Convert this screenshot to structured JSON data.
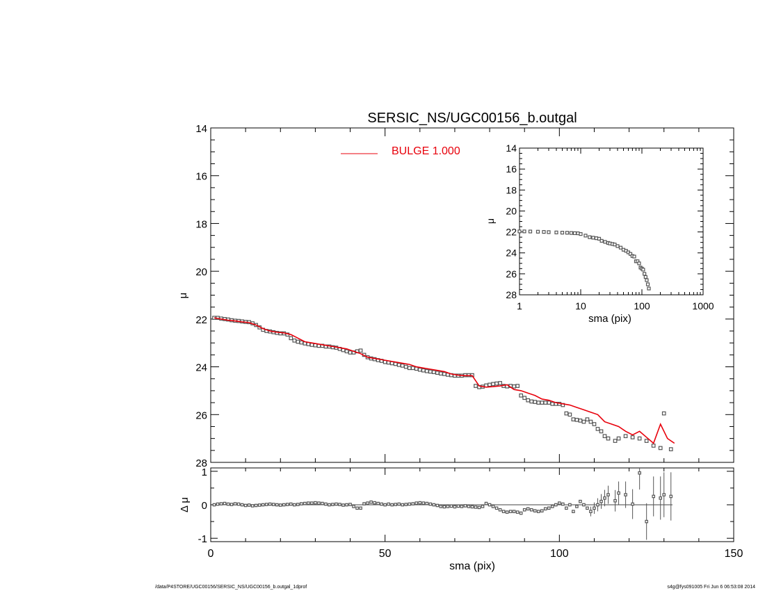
{
  "title": "SERSIC_NS/UGC00156_b.outgal",
  "footer": {
    "left": "/data/P4STORE/UGC00156/SERSIC_NS/UGC00156_b.outgal_1dprof",
    "right": "s4g@fys091005  Fri Jun  6 06:53:08 2014"
  },
  "colors": {
    "model": "#e8000b",
    "data": "#555555",
    "axes": "#000000"
  },
  "chart_data": [
    {
      "panel": "main",
      "type": "scatter",
      "title": "SERSIC_NS/UGC00156_b.outgal",
      "ylabel": "μ",
      "xlim": [
        0,
        150
      ],
      "ylim": [
        28,
        14
      ],
      "y_reversed": true,
      "yticks": [
        "14",
        "16",
        "18",
        "20",
        "22",
        "24",
        "26",
        "28"
      ],
      "legend": {
        "label": "BULGE  1.000",
        "placement": "top-center"
      },
      "series": [
        {
          "name": "data",
          "x": [
            1,
            2,
            3,
            4,
            5,
            6,
            7,
            8,
            9,
            10,
            11,
            12,
            13,
            14,
            15,
            16,
            17,
            18,
            19,
            20,
            21,
            22,
            23,
            24,
            25,
            26,
            27,
            28,
            29,
            30,
            31,
            32,
            33,
            34,
            35,
            36,
            37,
            38,
            39,
            40,
            41,
            42,
            43,
            44,
            45,
            46,
            47,
            48,
            49,
            50,
            51,
            52,
            53,
            54,
            55,
            56,
            57,
            58,
            59,
            60,
            61,
            62,
            63,
            64,
            65,
            66,
            67,
            68,
            69,
            70,
            71,
            72,
            73,
            74,
            75,
            76,
            77,
            78,
            79,
            80,
            81,
            82,
            83,
            84,
            85,
            86,
            87,
            88,
            89,
            90,
            91,
            92,
            93,
            94,
            95,
            96,
            97,
            98,
            99,
            100,
            101,
            102,
            103,
            104,
            105,
            106,
            107,
            108,
            109,
            110,
            111,
            112,
            113,
            114,
            116,
            117,
            119,
            121,
            123,
            125,
            127,
            129,
            130,
            132
          ],
          "values": [
            21.95,
            21.95,
            21.98,
            22.0,
            22.02,
            22.05,
            22.07,
            22.08,
            22.1,
            22.12,
            22.13,
            22.18,
            22.25,
            22.35,
            22.45,
            22.5,
            22.52,
            22.55,
            22.58,
            22.6,
            22.6,
            22.65,
            22.8,
            22.9,
            22.95,
            22.98,
            23.02,
            23.05,
            23.08,
            23.1,
            23.12,
            23.12,
            23.15,
            23.15,
            23.18,
            23.2,
            23.25,
            23.3,
            23.35,
            23.4,
            23.4,
            23.35,
            23.32,
            23.5,
            23.6,
            23.65,
            23.68,
            23.72,
            23.75,
            23.8,
            23.82,
            23.85,
            23.88,
            23.92,
            23.95,
            24.0,
            24.05,
            24.05,
            24.08,
            24.12,
            24.15,
            24.18,
            24.2,
            24.22,
            24.25,
            24.28,
            24.3,
            24.33,
            24.35,
            24.37,
            24.37,
            24.37,
            24.35,
            24.35,
            24.35,
            24.8,
            24.85,
            24.83,
            24.78,
            24.75,
            24.72,
            24.7,
            24.68,
            24.8,
            24.82,
            24.8,
            24.82,
            24.8,
            25.2,
            25.3,
            25.4,
            25.45,
            25.47,
            25.5,
            25.5,
            25.5,
            25.5,
            25.55,
            25.55,
            25.55,
            25.6,
            25.95,
            26.0,
            26.2,
            26.22,
            26.25,
            26.3,
            26.2,
            26.3,
            26.4,
            26.6,
            26.7,
            26.9,
            27.0,
            27.1,
            27.0,
            26.9,
            26.95,
            27.0,
            27.1,
            27.3,
            27.4,
            25.95,
            27.45
          ]
        },
        {
          "name": "model",
          "x": [
            1,
            3,
            5,
            7,
            9,
            11,
            13,
            15,
            17,
            19,
            21,
            23,
            25,
            27,
            29,
            31,
            33,
            35,
            37,
            39,
            41,
            43,
            45,
            47,
            49,
            51,
            53,
            55,
            57,
            59,
            61,
            63,
            65,
            67,
            69,
            71,
            73,
            75,
            77,
            79,
            81,
            83,
            85,
            87,
            89,
            91,
            93,
            95,
            97,
            99,
            101,
            103,
            105,
            107,
            109,
            111,
            113,
            115,
            117,
            119,
            121,
            123,
            125,
            127,
            129,
            131,
            133
          ],
          "values": [
            21.95,
            22.0,
            22.05,
            22.08,
            22.12,
            22.15,
            22.25,
            22.4,
            22.5,
            22.55,
            22.58,
            22.65,
            22.8,
            22.95,
            23.0,
            23.05,
            23.1,
            23.15,
            23.2,
            23.25,
            23.35,
            23.45,
            23.6,
            23.65,
            23.7,
            23.75,
            23.8,
            23.85,
            23.9,
            24.0,
            24.05,
            24.1,
            24.15,
            24.2,
            24.3,
            24.35,
            24.37,
            24.37,
            24.8,
            24.85,
            24.83,
            24.8,
            24.75,
            24.95,
            25.0,
            25.1,
            25.2,
            25.35,
            25.4,
            25.5,
            25.55,
            25.6,
            25.7,
            25.8,
            25.9,
            26.0,
            26.3,
            26.4,
            26.5,
            26.7,
            26.85,
            26.7,
            26.95,
            27.2,
            26.4,
            27.0,
            27.2
          ]
        }
      ]
    },
    {
      "panel": "residual",
      "type": "scatter",
      "xlabel": "sma (pix)",
      "ylabel": "Δ μ",
      "xlim": [
        0,
        150
      ],
      "ylim": [
        -1.1,
        1.1
      ],
      "xticks": [
        "0",
        "50",
        "100",
        "150"
      ],
      "yticks": [
        "1",
        "0",
        "-1"
      ],
      "series": [
        {
          "name": "residual",
          "x": [
            1,
            2,
            3,
            4,
            5,
            6,
            7,
            8,
            9,
            10,
            11,
            12,
            13,
            14,
            15,
            16,
            17,
            18,
            19,
            20,
            21,
            22,
            23,
            24,
            25,
            26,
            27,
            28,
            29,
            30,
            31,
            32,
            33,
            34,
            35,
            36,
            37,
            38,
            39,
            40,
            41,
            42,
            43,
            44,
            45,
            46,
            47,
            48,
            49,
            50,
            51,
            52,
            53,
            54,
            55,
            56,
            57,
            58,
            59,
            60,
            61,
            62,
            63,
            64,
            65,
            66,
            67,
            68,
            69,
            70,
            71,
            72,
            73,
            74,
            75,
            76,
            77,
            78,
            79,
            80,
            81,
            82,
            83,
            84,
            85,
            86,
            87,
            88,
            89,
            90,
            91,
            92,
            93,
            94,
            95,
            96,
            97,
            98,
            99,
            100,
            101,
            102,
            103,
            104,
            105,
            106,
            107,
            108,
            109,
            110,
            111,
            112,
            113,
            114,
            116,
            117,
            119,
            121,
            123,
            125,
            127,
            129,
            130,
            132
          ],
          "values": [
            0.0,
            0.02,
            0.03,
            0.04,
            0.02,
            0.01,
            0.03,
            0.02,
            0.0,
            -0.02,
            -0.01,
            -0.03,
            -0.02,
            -0.01,
            0.0,
            0.01,
            0.02,
            0.01,
            0.0,
            -0.01,
            0.0,
            0.01,
            0.02,
            0.0,
            0.01,
            0.03,
            0.04,
            0.05,
            0.05,
            0.06,
            0.05,
            0.04,
            0.02,
            0.0,
            0.01,
            0.02,
            0.01,
            -0.01,
            0.0,
            0.01,
            -0.05,
            -0.1,
            -0.1,
            0.03,
            0.05,
            0.08,
            0.06,
            0.04,
            0.02,
            0.0,
            0.02,
            0.0,
            0.01,
            0.02,
            0.0,
            0.01,
            0.02,
            0.03,
            0.05,
            0.06,
            0.05,
            0.04,
            0.02,
            0.0,
            -0.02,
            -0.05,
            -0.06,
            -0.05,
            -0.04,
            -0.06,
            -0.04,
            -0.05,
            -0.03,
            -0.05,
            -0.06,
            -0.07,
            -0.08,
            -0.05,
            0.04,
            0.0,
            -0.05,
            -0.1,
            -0.15,
            -0.2,
            -0.22,
            -0.2,
            -0.2,
            -0.22,
            -0.25,
            -0.15,
            -0.12,
            -0.15,
            -0.18,
            -0.2,
            -0.18,
            -0.12,
            -0.1,
            -0.05,
            0.0,
            0.05,
            0.02,
            -0.1,
            0.0,
            -0.2,
            -0.05,
            0.1,
            0.0,
            -0.1,
            -0.2,
            -0.1,
            0.0,
            0.1,
            0.2,
            0.3,
            0.12,
            0.35,
            0.3,
            0.02,
            0.95,
            -0.5,
            0.25,
            0.2,
            0.3,
            0.25
          ]
        }
      ]
    },
    {
      "panel": "inset",
      "type": "scatter",
      "xlabel": "sma (pix)",
      "ylabel": "μ",
      "x_scale": "log",
      "xlim": [
        1,
        1000
      ],
      "ylim": [
        28,
        14
      ],
      "y_reversed": true,
      "xticks": [
        "1",
        "10",
        "100",
        "1000"
      ],
      "yticks": [
        "14",
        "16",
        "18",
        "20",
        "22",
        "24",
        "26",
        "28"
      ],
      "series": [
        {
          "name": "data",
          "x": [
            1,
            1.2,
            1.5,
            2,
            2.5,
            3,
            4,
            5,
            6,
            7,
            8,
            9,
            10,
            12,
            14,
            16,
            18,
            20,
            22,
            25,
            28,
            30,
            33,
            36,
            40,
            45,
            50,
            55,
            60,
            65,
            70,
            75,
            80,
            85,
            90,
            95,
            100,
            105,
            110,
            115,
            120,
            125,
            130
          ],
          "values": [
            21.95,
            21.95,
            21.96,
            21.98,
            22.0,
            22.02,
            22.05,
            22.07,
            22.08,
            22.1,
            22.12,
            22.13,
            22.2,
            22.35,
            22.5,
            22.55,
            22.6,
            22.65,
            22.85,
            22.95,
            23.05,
            23.1,
            23.15,
            23.2,
            23.35,
            23.5,
            23.7,
            23.8,
            23.95,
            24.1,
            24.3,
            24.35,
            24.8,
            24.8,
            25.0,
            25.4,
            25.5,
            25.6,
            26.0,
            26.3,
            26.6,
            27.0,
            27.4
          ]
        }
      ]
    }
  ]
}
